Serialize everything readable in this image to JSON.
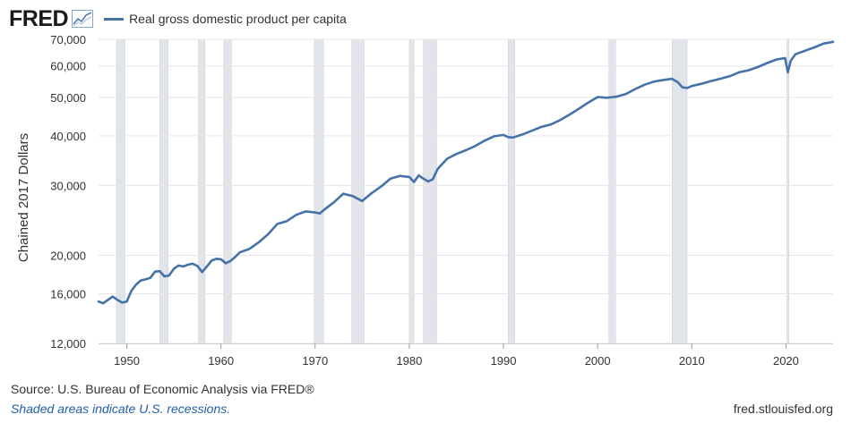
{
  "header": {
    "logo_text": "FRED",
    "logo_icon": "chart-line-icon",
    "legend_label": "Real gross domestic product per capita"
  },
  "footer": {
    "source": "Source: U.S. Bureau of Economic Analysis via FRED®",
    "recessions_note": "Shaded areas indicate U.S. recessions.",
    "site": "fred.stlouisfed.org"
  },
  "colors": {
    "series": "#4572a7",
    "recession": "#e1e5ea",
    "grid": "#e6e6e6"
  },
  "chart_data": {
    "type": "line",
    "title": "",
    "xlabel": "",
    "ylabel": "Chained 2017 Dollars",
    "y_scale": "log",
    "ylim": [
      12000,
      70000
    ],
    "xlim": [
      1947,
      2025
    ],
    "x_ticks": [
      1950,
      1960,
      1970,
      1980,
      1990,
      2000,
      2010,
      2020
    ],
    "y_ticks": [
      {
        "value": 12000,
        "label": "12,000"
      },
      {
        "value": 16000,
        "label": "16,000"
      },
      {
        "value": 20000,
        "label": "20,000"
      },
      {
        "value": 30000,
        "label": "30,000"
      },
      {
        "value": 40000,
        "label": "40,000"
      },
      {
        "value": 50000,
        "label": "50,000"
      },
      {
        "value": 60000,
        "label": "60,000"
      },
      {
        "value": 70000,
        "label": "70,000"
      }
    ],
    "grid": true,
    "legend": "top-left",
    "recessions": [
      [
        1948.9,
        1949.8
      ],
      [
        1953.5,
        1954.4
      ],
      [
        1957.6,
        1958.3
      ],
      [
        1960.3,
        1961.1
      ],
      [
        1969.9,
        1970.9
      ],
      [
        1973.9,
        1975.2
      ],
      [
        1980.0,
        1980.5
      ],
      [
        1981.5,
        1982.9
      ],
      [
        1990.5,
        1991.2
      ],
      [
        2001.2,
        2001.9
      ],
      [
        2007.9,
        2009.5
      ],
      [
        2020.1,
        2020.3
      ]
    ],
    "series": [
      {
        "name": "Real gross domestic product per capita",
        "x": [
          1947,
          1947.5,
          1948,
          1948.5,
          1949,
          1949.5,
          1950,
          1950.5,
          1951,
          1951.5,
          1952,
          1952.5,
          1953,
          1953.5,
          1954,
          1954.5,
          1955,
          1955.5,
          1956,
          1956.5,
          1957,
          1957.5,
          1958,
          1958.5,
          1959,
          1959.5,
          1960,
          1960.5,
          1961,
          1961.5,
          1962,
          1963,
          1964,
          1965,
          1966,
          1967,
          1968,
          1969,
          1970,
          1970.5,
          1971,
          1972,
          1973,
          1974,
          1975,
          1976,
          1977,
          1978,
          1979,
          1980,
          1980.5,
          1981,
          1981.5,
          1982,
          1982.5,
          1983,
          1984,
          1985,
          1986,
          1987,
          1988,
          1989,
          1990,
          1990.5,
          1991,
          1992,
          1993,
          1994,
          1995,
          1996,
          1997,
          1998,
          1999,
          2000,
          2001,
          2002,
          2003,
          2004,
          2005,
          2006,
          2007,
          2007.9,
          2008.5,
          2009,
          2009.5,
          2010,
          2011,
          2012,
          2013,
          2014,
          2015,
          2016,
          2017,
          2018,
          2019,
          2019.9,
          2020.2,
          2020.5,
          2021,
          2022,
          2023,
          2024,
          2025
        ],
        "values": [
          15300,
          15150,
          15450,
          15750,
          15450,
          15200,
          15300,
          16300,
          16900,
          17300,
          17400,
          17550,
          18200,
          18250,
          17700,
          17800,
          18500,
          18850,
          18750,
          18950,
          19050,
          18800,
          18150,
          18750,
          19400,
          19600,
          19550,
          19100,
          19350,
          19800,
          20350,
          20750,
          21550,
          22600,
          24000,
          24400,
          25300,
          25800,
          25650,
          25500,
          26100,
          27200,
          28600,
          28200,
          27400,
          28700,
          29800,
          31200,
          31700,
          31500,
          30600,
          31800,
          31200,
          30700,
          31100,
          33000,
          35000,
          36000,
          36800,
          37700,
          38900,
          39900,
          40200,
          39700,
          39600,
          40300,
          41200,
          42100,
          42700,
          43800,
          45200,
          46800,
          48500,
          50100,
          49900,
          50200,
          51000,
          52500,
          53800,
          54800,
          55300,
          55700,
          54600,
          53000,
          52800,
          53400,
          54100,
          54900,
          55700,
          56500,
          57800,
          58500,
          59600,
          61000,
          62300,
          62800,
          57800,
          61800,
          64200,
          65500,
          66800,
          68300,
          69000
        ]
      }
    ]
  }
}
